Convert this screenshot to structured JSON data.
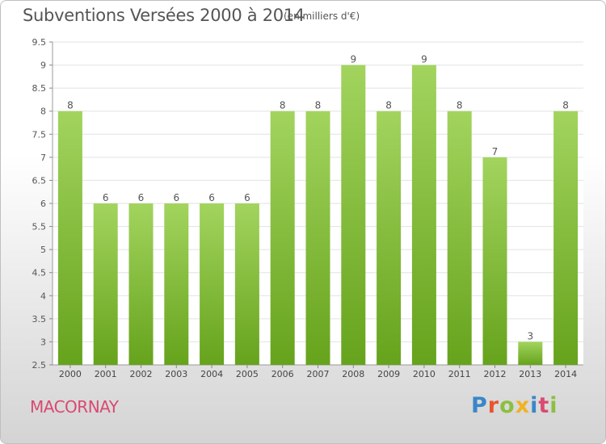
{
  "header": {
    "title": "Subventions Versées 2000 à 2014",
    "subtitle": "(en milliers d'€)"
  },
  "footer": {
    "commune": "MACORNAY",
    "logo_text": "Proxiti"
  },
  "colors": {
    "bar_top": "#a2d45e",
    "bar_bottom": "#66a31c",
    "logo": [
      "#3a86c8",
      "#e8542c",
      "#8cbf3f",
      "#f0b323",
      "#3a86c8",
      "#d94a72",
      "#8cbf3f"
    ]
  },
  "chart_data": {
    "type": "bar",
    "title": "Subventions Versées 2000 à 2014",
    "subtitle": "(en milliers d'€)",
    "categories": [
      "2000",
      "2001",
      "2002",
      "2003",
      "2004",
      "2005",
      "2006",
      "2007",
      "2008",
      "2009",
      "2010",
      "2011",
      "2012",
      "2013",
      "2014"
    ],
    "values": [
      8,
      6,
      6,
      6,
      6,
      6,
      8,
      8,
      9,
      8,
      9,
      8,
      7,
      3,
      8
    ],
    "ylim": [
      2.5,
      9.5
    ],
    "yticks": [
      "2.5",
      "3",
      "3.5",
      "4",
      "4.5",
      "5",
      "5.5",
      "6",
      "6.5",
      "7",
      "7.5",
      "8",
      "8.5",
      "9",
      "9.5"
    ],
    "grid": true,
    "xlabel": "",
    "ylabel": ""
  }
}
